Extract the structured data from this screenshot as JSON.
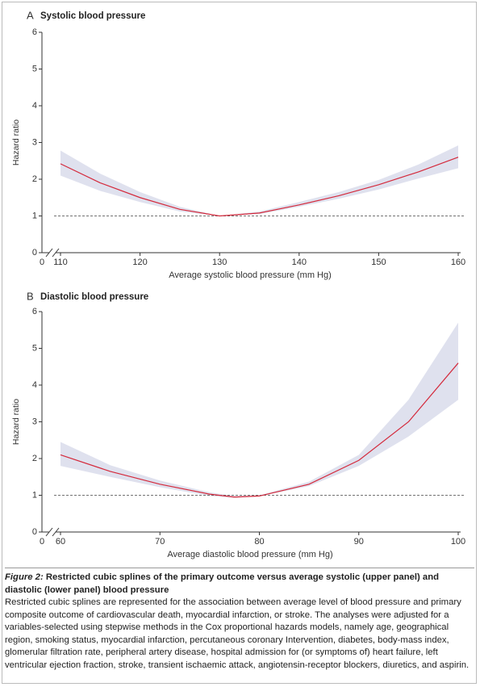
{
  "chart_data": [
    {
      "type": "line",
      "panel": "A",
      "title": "Systolic blood pressure",
      "x_label": "Average systolic blood pressure (mm Hg)",
      "y_label": "Hazard ratio",
      "x": [
        110,
        115,
        120,
        125,
        130,
        135,
        140,
        145,
        150,
        155,
        160
      ],
      "values": [
        2.42,
        1.9,
        1.5,
        1.18,
        1.0,
        1.08,
        1.3,
        1.55,
        1.85,
        2.2,
        2.6
      ],
      "lower": [
        2.1,
        1.68,
        1.38,
        1.12,
        1.0,
        1.05,
        1.25,
        1.47,
        1.72,
        2.02,
        2.3
      ],
      "upper": [
        2.78,
        2.15,
        1.65,
        1.25,
        1.0,
        1.12,
        1.38,
        1.65,
        1.98,
        2.4,
        2.92
      ],
      "color": "#d42a3c",
      "band_color": "#dfe1ee",
      "reference_line": 1,
      "axis_origin_label": "0",
      "xlim": [
        110,
        160
      ],
      "xticks": [
        110,
        120,
        130,
        140,
        150,
        160
      ],
      "ylim": [
        0,
        6
      ],
      "yticks": [
        0,
        1,
        2,
        3,
        4,
        5,
        6
      ]
    },
    {
      "type": "line",
      "panel": "B",
      "title": "Diastolic blood pressure",
      "x_label": "Average diastolic blood pressure (mm Hg)",
      "y_label": "Hazard ratio",
      "x": [
        60,
        65,
        70,
        75,
        77.5,
        80,
        85,
        90,
        95,
        100
      ],
      "values": [
        2.1,
        1.65,
        1.3,
        1.03,
        0.95,
        0.98,
        1.3,
        1.95,
        3.0,
        4.6
      ],
      "lower": [
        1.8,
        1.5,
        1.22,
        0.98,
        0.93,
        0.97,
        1.25,
        1.8,
        2.6,
        3.6
      ],
      "upper": [
        2.45,
        1.82,
        1.4,
        1.08,
        0.98,
        1.0,
        1.37,
        2.1,
        3.6,
        5.7
      ],
      "color": "#d42a3c",
      "band_color": "#dfe1ee",
      "reference_line": 1,
      "axis_origin_label": "0",
      "xlim": [
        60,
        100
      ],
      "xticks": [
        60,
        70,
        80,
        90,
        100
      ],
      "ylim": [
        0,
        6
      ],
      "yticks": [
        0,
        1,
        2,
        3,
        4,
        5,
        6
      ]
    }
  ],
  "caption": {
    "label": "Figure 2:",
    "title": "Restricted cubic splines of the primary outcome versus average systolic (upper panel) and diastolic (lower panel) blood pressure",
    "body": "Restricted cubic splines are represented for the association between average level of blood pressure and primary composite outcome of cardiovascular death, myocardial infarction, or stroke. The analyses were adjusted for a variables-selected using stepwise methods in the Cox proportional hazards models, namely age, geographical region, smoking status, myocardial infarction, percutaneous coronary Intervention, diabetes, body-mass index, glomerular filtration rate, peripheral artery disease, hospital admission for (or symptoms of) heart failure, left ventricular ejection fraction, stroke, transient ischaemic attack, angiotensin-receptor blockers, diuretics, and aspirin."
  }
}
